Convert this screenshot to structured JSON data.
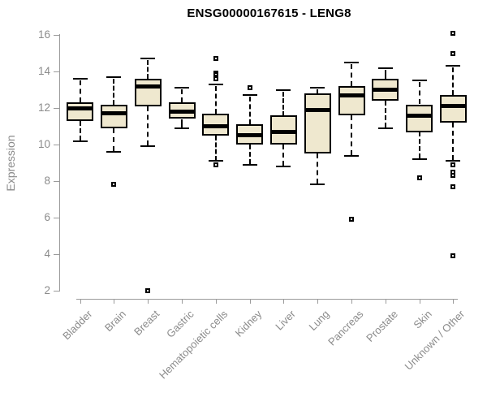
{
  "colors": {
    "background": "#ffffff",
    "title_text": "#000000",
    "axis_text": "#8b8b8b",
    "axis_line": "#9b9b9b",
    "box_fill": "#efe8cf",
    "box_border": "#000000",
    "median": "#000000",
    "outlier_fill": "#ffffff"
  },
  "chart_data": {
    "type": "boxplot",
    "title": "ENSG00000167615 - LENG8",
    "xlabel": "",
    "ylabel": "Expression",
    "ylim": [
      2,
      16
    ],
    "yticks": [
      2,
      4,
      6,
      8,
      10,
      12,
      14,
      16
    ],
    "grid": false,
    "legend": false,
    "categories": [
      "Bladder",
      "Brain",
      "Breast",
      "Gastric",
      "Hematopoietic cells",
      "Kidney",
      "Liver",
      "Lung",
      "Pancreas",
      "Prostate",
      "Skin",
      "Unknown / Other"
    ],
    "series": [
      {
        "category": "Bladder",
        "whisker_low": 10.2,
        "q1": 11.3,
        "median": 12.0,
        "q3": 12.3,
        "whisker_high": 13.6,
        "outliers": []
      },
      {
        "category": "Brain",
        "whisker_low": 9.6,
        "q1": 10.9,
        "median": 11.7,
        "q3": 12.2,
        "whisker_high": 13.7,
        "outliers": [
          7.8
        ]
      },
      {
        "category": "Breast",
        "whisker_low": 9.9,
        "q1": 12.1,
        "median": 13.2,
        "q3": 13.6,
        "whisker_high": 14.7,
        "outliers": [
          2.0
        ]
      },
      {
        "category": "Gastric",
        "whisker_low": 10.9,
        "q1": 11.4,
        "median": 11.8,
        "q3": 12.3,
        "whisker_high": 13.1,
        "outliers": []
      },
      {
        "category": "Hematopoietic cells",
        "whisker_low": 9.1,
        "q1": 10.5,
        "median": 11.0,
        "q3": 11.7,
        "whisker_high": 13.3,
        "outliers": [
          14.7,
          13.9,
          13.8,
          13.7,
          13.6,
          8.9
        ]
      },
      {
        "category": "Kidney",
        "whisker_low": 8.9,
        "q1": 10.0,
        "median": 10.5,
        "q3": 11.1,
        "whisker_high": 12.7,
        "outliers": [
          13.1
        ]
      },
      {
        "category": "Liver",
        "whisker_low": 8.8,
        "q1": 10.0,
        "median": 10.7,
        "q3": 11.6,
        "whisker_high": 13.0,
        "outliers": []
      },
      {
        "category": "Lung",
        "whisker_low": 7.8,
        "q1": 9.5,
        "median": 11.9,
        "q3": 12.8,
        "whisker_high": 13.1,
        "outliers": []
      },
      {
        "category": "Pancreas",
        "whisker_low": 9.4,
        "q1": 11.6,
        "median": 12.7,
        "q3": 13.2,
        "whisker_high": 14.5,
        "outliers": [
          5.9
        ]
      },
      {
        "category": "Prostate",
        "whisker_low": 10.9,
        "q1": 12.4,
        "median": 13.0,
        "q3": 13.6,
        "whisker_high": 14.2,
        "outliers": []
      },
      {
        "category": "Skin",
        "whisker_low": 9.2,
        "q1": 10.7,
        "median": 11.6,
        "q3": 12.2,
        "whisker_high": 13.5,
        "outliers": [
          8.2
        ]
      },
      {
        "category": "Unknown / Other",
        "whisker_low": 9.1,
        "q1": 11.2,
        "median": 12.1,
        "q3": 12.7,
        "whisker_high": 14.3,
        "outliers": [
          16.1,
          15.0,
          8.9,
          8.5,
          8.3,
          7.7,
          3.9
        ]
      }
    ]
  }
}
